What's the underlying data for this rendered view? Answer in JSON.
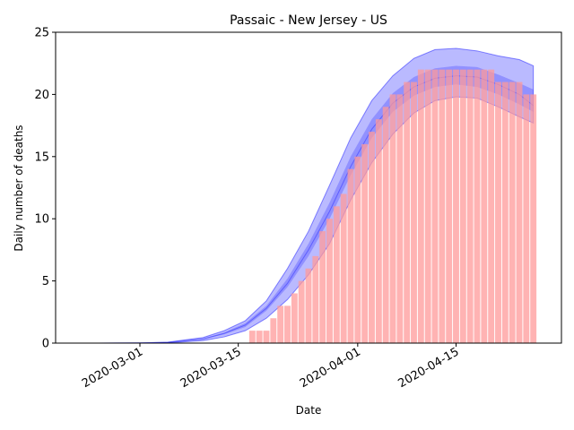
{
  "chart_data": {
    "type": "bar",
    "title": "Passaic - New Jersey - US",
    "xlabel": "Date",
    "ylabel": "Daily number of deaths",
    "ylim": [
      0,
      25
    ],
    "yticks": [
      0,
      5,
      10,
      15,
      20,
      25
    ],
    "xticks": [
      "2020-03-01",
      "2020-03-15",
      "2020-04-01",
      "2020-04-15"
    ],
    "xlim": [
      "2020-02-18",
      "2020-04-30"
    ],
    "grid": false,
    "colors": {
      "bars": "#ff9999",
      "band_fill": "#0000ff",
      "band_line": "#0000ff",
      "axis": "#000000"
    },
    "bars": {
      "dates": [
        "2020-03-17",
        "2020-03-18",
        "2020-03-19",
        "2020-03-20",
        "2020-03-21",
        "2020-03-22",
        "2020-03-23",
        "2020-03-24",
        "2020-03-25",
        "2020-03-26",
        "2020-03-27",
        "2020-03-28",
        "2020-03-29",
        "2020-03-30",
        "2020-03-31",
        "2020-04-01",
        "2020-04-02",
        "2020-04-03",
        "2020-04-04",
        "2020-04-05",
        "2020-04-06",
        "2020-04-07",
        "2020-04-08",
        "2020-04-09",
        "2020-04-10",
        "2020-04-11",
        "2020-04-12",
        "2020-04-13",
        "2020-04-14",
        "2020-04-15",
        "2020-04-16",
        "2020-04-17",
        "2020-04-18",
        "2020-04-19",
        "2020-04-20",
        "2020-04-21",
        "2020-04-22",
        "2020-04-23",
        "2020-04-24",
        "2020-04-25",
        "2020-04-26"
      ],
      "values": [
        1,
        1,
        1,
        2,
        3,
        3,
        4,
        5,
        6,
        7,
        9,
        10,
        11,
        12,
        14,
        15,
        16,
        17,
        18,
        19,
        20,
        20,
        21,
        21,
        22,
        22,
        22,
        22,
        22,
        22,
        22,
        22,
        22,
        22,
        22,
        21,
        21,
        21,
        21,
        20,
        20
      ]
    },
    "bands": {
      "dates": [
        "2020-02-24",
        "2020-03-01",
        "2020-03-05",
        "2020-03-10",
        "2020-03-13",
        "2020-03-16",
        "2020-03-19",
        "2020-03-22",
        "2020-03-25",
        "2020-03-28",
        "2020-03-31",
        "2020-04-03",
        "2020-04-06",
        "2020-04-09",
        "2020-04-12",
        "2020-04-15",
        "2020-04-18",
        "2020-04-21",
        "2020-04-24",
        "2020-04-26"
      ],
      "outer_low": [
        0,
        0,
        0.02,
        0.2,
        0.5,
        1.0,
        2.0,
        3.5,
        5.5,
        8.0,
        11.5,
        14.5,
        16.8,
        18.5,
        19.5,
        19.8,
        19.7,
        19.0,
        18.2,
        17.7
      ],
      "outer_high": [
        0,
        0.02,
        0.08,
        0.45,
        1.0,
        1.8,
        3.4,
        6.0,
        9.0,
        12.7,
        16.5,
        19.5,
        21.5,
        22.9,
        23.6,
        23.7,
        23.5,
        23.1,
        22.8,
        22.3
      ],
      "inner_low": [
        0,
        0.01,
        0.04,
        0.3,
        0.7,
        1.3,
        2.6,
        4.5,
        7.0,
        10.0,
        13.5,
        16.5,
        18.6,
        19.9,
        20.6,
        20.8,
        20.6,
        20.0,
        19.2,
        18.6
      ],
      "inner_high": [
        0,
        0.02,
        0.06,
        0.37,
        0.85,
        1.6,
        3.0,
        5.2,
        8.0,
        11.3,
        15.0,
        18.0,
        20.1,
        21.4,
        22.1,
        22.3,
        22.2,
        21.6,
        20.9,
        20.4
      ],
      "median": [
        0,
        0.015,
        0.05,
        0.33,
        0.78,
        1.45,
        2.8,
        4.8,
        7.5,
        10.6,
        14.2,
        17.2,
        19.3,
        20.6,
        21.3,
        21.5,
        21.4,
        20.8,
        20.0,
        19.1
      ]
    }
  }
}
